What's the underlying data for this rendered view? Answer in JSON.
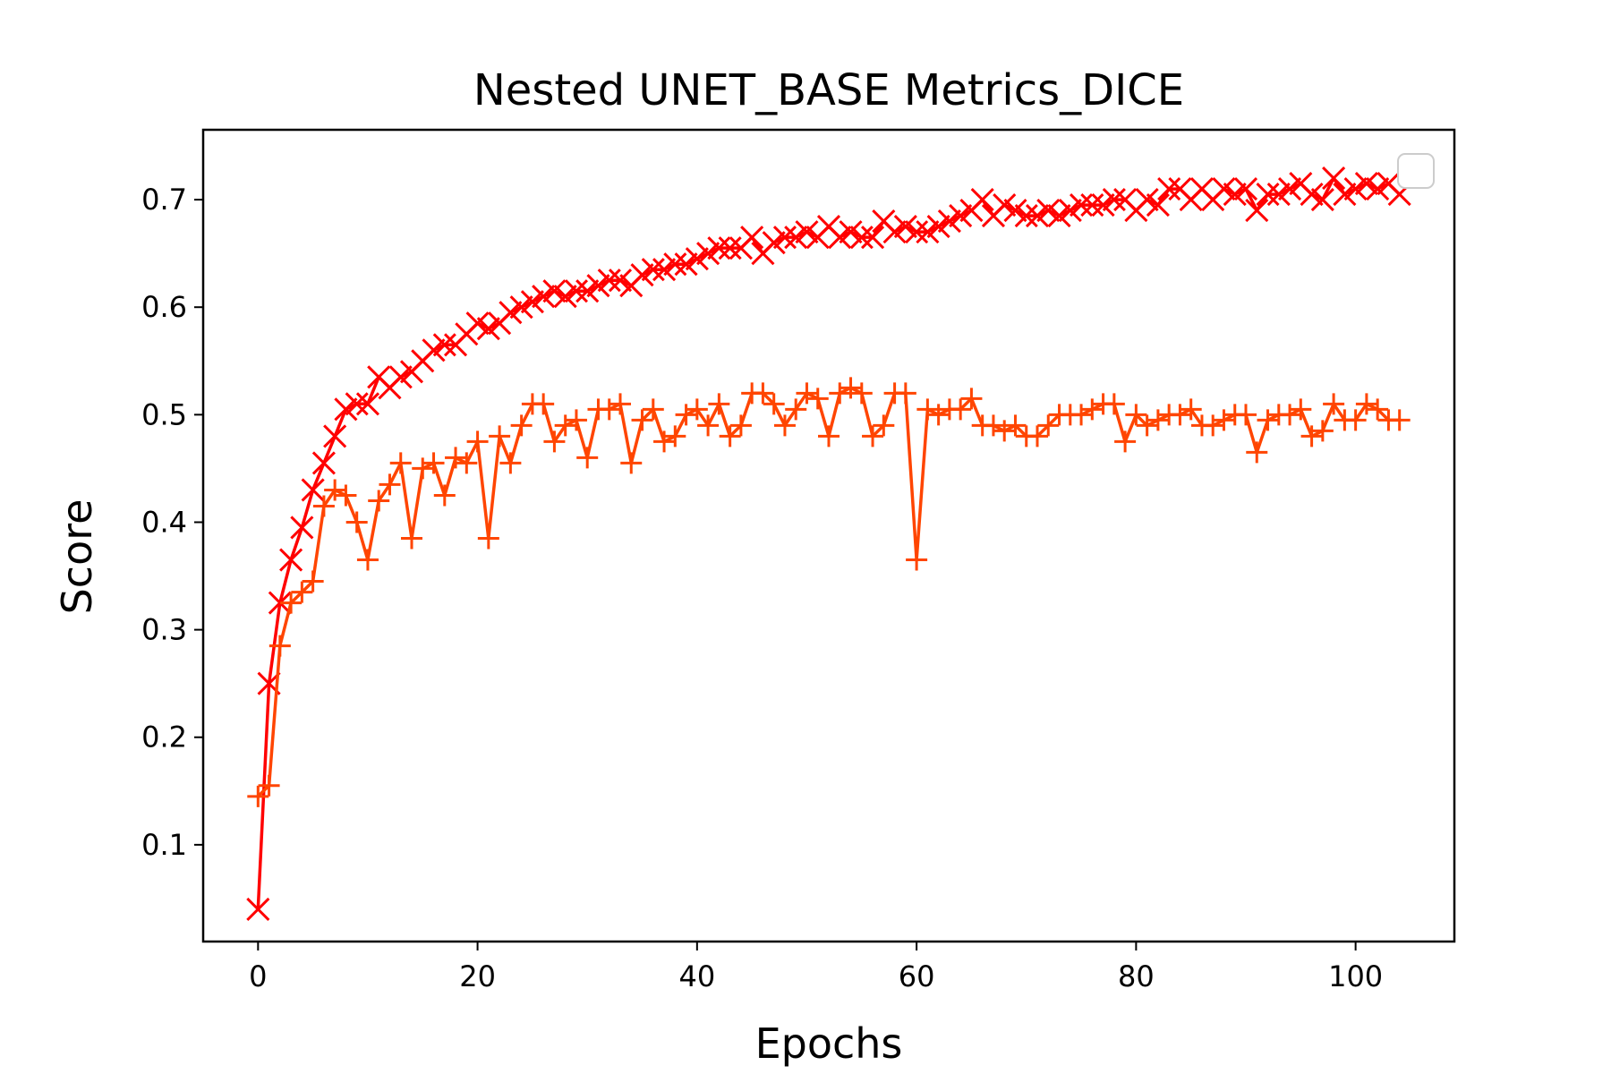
{
  "chart_data": {
    "type": "line",
    "title": "Nested UNET_BASE Metrics_DICE",
    "xlabel": "Epochs",
    "ylabel": "Score",
    "xlim": [
      -5,
      109
    ],
    "ylim": [
      0.01,
      0.765
    ],
    "xticks": [
      0,
      20,
      40,
      60,
      80,
      100
    ],
    "yticks": [
      0.1,
      0.2,
      0.3,
      0.4,
      0.5,
      0.6,
      0.7
    ],
    "xtick_labels": [
      "0",
      "20",
      "40",
      "60",
      "80",
      "100"
    ],
    "ytick_labels": [
      "0.1",
      "0.2",
      "0.3",
      "0.4",
      "0.5",
      "0.6",
      "0.7"
    ],
    "grid": false,
    "legend": "top-right (empty)",
    "series": [
      {
        "color": "#ff0000",
        "marker": "x",
        "x": [
          0,
          1,
          2,
          3,
          4,
          5,
          6,
          7,
          8,
          9,
          10,
          11,
          12,
          13,
          14,
          15,
          16,
          17,
          18,
          19,
          20,
          21,
          22,
          23,
          24,
          25,
          26,
          27,
          28,
          29,
          30,
          31,
          32,
          33,
          34,
          35,
          36,
          37,
          38,
          39,
          40,
          41,
          42,
          43,
          44,
          45,
          46,
          47,
          48,
          49,
          50,
          51,
          52,
          53,
          54,
          55,
          56,
          57,
          58,
          59,
          60,
          61,
          62,
          63,
          64,
          65,
          66,
          67,
          68,
          69,
          70,
          71,
          72,
          73,
          74,
          75,
          76,
          77,
          78,
          79,
          80,
          81,
          82,
          83,
          84,
          85,
          86,
          87,
          88,
          89,
          90,
          91,
          92,
          93,
          94,
          95,
          96,
          97,
          98,
          99,
          100,
          101,
          102,
          103,
          104
        ],
        "values": [
          0.04,
          0.25,
          0.325,
          0.365,
          0.395,
          0.43,
          0.455,
          0.48,
          0.505,
          0.51,
          0.51,
          0.535,
          0.525,
          0.535,
          0.54,
          0.55,
          0.56,
          0.565,
          0.565,
          0.575,
          0.585,
          0.58,
          0.585,
          0.595,
          0.6,
          0.605,
          0.61,
          0.615,
          0.61,
          0.615,
          0.615,
          0.62,
          0.625,
          0.625,
          0.62,
          0.63,
          0.635,
          0.635,
          0.64,
          0.64,
          0.645,
          0.65,
          0.655,
          0.655,
          0.655,
          0.665,
          0.65,
          0.66,
          0.665,
          0.665,
          0.67,
          0.665,
          0.675,
          0.665,
          0.67,
          0.665,
          0.665,
          0.68,
          0.67,
          0.675,
          0.67,
          0.67,
          0.675,
          0.68,
          0.685,
          0.69,
          0.7,
          0.685,
          0.695,
          0.69,
          0.685,
          0.685,
          0.69,
          0.685,
          0.69,
          0.695,
          0.695,
          0.695,
          0.7,
          0.7,
          0.69,
          0.7,
          0.695,
          0.71,
          0.71,
          0.7,
          0.71,
          0.7,
          0.71,
          0.705,
          0.71,
          0.69,
          0.705,
          0.705,
          0.71,
          0.715,
          0.705,
          0.7,
          0.72,
          0.705,
          0.71,
          0.715,
          0.71,
          0.715,
          0.705
        ]
      },
      {
        "color": "#ff4500",
        "marker": "+",
        "x": [
          0,
          1,
          2,
          3,
          4,
          5,
          6,
          7,
          8,
          9,
          10,
          11,
          12,
          13,
          14,
          15,
          16,
          17,
          18,
          19,
          20,
          21,
          22,
          23,
          24,
          25,
          26,
          27,
          28,
          29,
          30,
          31,
          32,
          33,
          34,
          35,
          36,
          37,
          38,
          39,
          40,
          41,
          42,
          43,
          44,
          45,
          46,
          47,
          48,
          49,
          50,
          51,
          52,
          53,
          54,
          55,
          56,
          57,
          58,
          59,
          60,
          61,
          62,
          63,
          64,
          65,
          66,
          67,
          68,
          69,
          70,
          71,
          72,
          73,
          74,
          75,
          76,
          77,
          78,
          79,
          80,
          81,
          82,
          83,
          84,
          85,
          86,
          87,
          88,
          89,
          90,
          91,
          92,
          93,
          94,
          95,
          96,
          97,
          98,
          99,
          100,
          101,
          102,
          103,
          104
        ],
        "values": [
          0.145,
          0.155,
          0.285,
          0.325,
          0.335,
          0.345,
          0.415,
          0.43,
          0.425,
          0.4,
          0.365,
          0.42,
          0.435,
          0.455,
          0.385,
          0.45,
          0.455,
          0.425,
          0.46,
          0.455,
          0.475,
          0.385,
          0.48,
          0.455,
          0.49,
          0.51,
          0.51,
          0.475,
          0.49,
          0.495,
          0.46,
          0.505,
          0.505,
          0.51,
          0.455,
          0.495,
          0.505,
          0.475,
          0.48,
          0.5,
          0.505,
          0.49,
          0.51,
          0.48,
          0.49,
          0.52,
          0.52,
          0.51,
          0.49,
          0.505,
          0.52,
          0.515,
          0.48,
          0.52,
          0.525,
          0.52,
          0.48,
          0.49,
          0.52,
          0.52,
          0.365,
          0.505,
          0.5,
          0.505,
          0.505,
          0.515,
          0.49,
          0.49,
          0.485,
          0.49,
          0.48,
          0.48,
          0.49,
          0.5,
          0.5,
          0.5,
          0.505,
          0.51,
          0.51,
          0.475,
          0.5,
          0.49,
          0.495,
          0.5,
          0.5,
          0.505,
          0.49,
          0.49,
          0.495,
          0.5,
          0.5,
          0.465,
          0.495,
          0.5,
          0.5,
          0.505,
          0.48,
          0.485,
          0.51,
          0.495,
          0.495,
          0.51,
          0.505,
          0.495,
          0.495
        ]
      }
    ]
  }
}
